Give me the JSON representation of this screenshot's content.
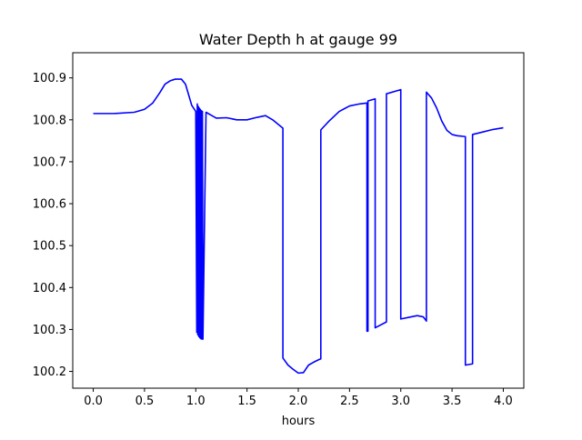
{
  "chart_data": {
    "type": "line",
    "title": "Water Depth h at gauge 99",
    "xlabel": "hours",
    "ylabel": "",
    "xlim": [
      -0.2,
      4.2
    ],
    "ylim": [
      100.16,
      100.96
    ],
    "xticks": [
      0.0,
      0.5,
      1.0,
      1.5,
      2.0,
      2.5,
      3.0,
      3.5,
      4.0
    ],
    "xtick_labels": [
      "0.0",
      "0.5",
      "1.0",
      "1.5",
      "2.0",
      "2.5",
      "3.0",
      "3.5",
      "4.0"
    ],
    "yticks": [
      100.2,
      100.3,
      100.4,
      100.5,
      100.6,
      100.7,
      100.8,
      100.9
    ],
    "ytick_labels": [
      "100.2",
      "100.3",
      "100.4",
      "100.5",
      "100.6",
      "100.7",
      "100.8",
      "100.9"
    ],
    "grid": false,
    "legend": "none",
    "series": [
      {
        "color": "#0000ff",
        "x": [
          0.0,
          0.2,
          0.4,
          0.5,
          0.58,
          0.65,
          0.7,
          0.75,
          0.8,
          0.86,
          0.9,
          0.93,
          0.96,
          1.0,
          1.01,
          1.015,
          1.02,
          1.025,
          1.03,
          1.035,
          1.04,
          1.045,
          1.05,
          1.055,
          1.06,
          1.065,
          1.07,
          1.1,
          1.2,
          1.3,
          1.4,
          1.5,
          1.6,
          1.68,
          1.75,
          1.85,
          1.85,
          1.9,
          1.95,
          2.0,
          2.05,
          2.1,
          2.15,
          2.2,
          2.22,
          2.22,
          2.3,
          2.4,
          2.5,
          2.6,
          2.67,
          2.67,
          2.68,
          2.68,
          2.75,
          2.75,
          2.86,
          2.86,
          3.0,
          3.0,
          3.1,
          3.16,
          3.22,
          3.25,
          3.25,
          3.3,
          3.35,
          3.4,
          3.45,
          3.5,
          3.55,
          3.63,
          3.63,
          3.7,
          3.7,
          3.8,
          3.9,
          4.0
        ],
        "y": [
          100.815,
          100.815,
          100.818,
          100.825,
          100.84,
          100.865,
          100.885,
          100.893,
          100.897,
          100.897,
          100.885,
          100.86,
          100.835,
          100.82,
          100.293,
          100.838,
          100.287,
          100.832,
          100.283,
          100.828,
          100.28,
          100.825,
          100.278,
          100.822,
          100.277,
          100.82,
          100.277,
          100.818,
          100.804,
          100.805,
          100.8,
          100.8,
          100.806,
          100.81,
          100.8,
          100.78,
          100.232,
          100.215,
          100.205,
          100.196,
          100.197,
          100.215,
          100.222,
          100.228,
          100.23,
          100.776,
          100.797,
          100.82,
          100.833,
          100.838,
          100.84,
          100.296,
          100.296,
          100.845,
          100.85,
          100.304,
          100.318,
          100.862,
          100.872,
          100.325,
          100.33,
          100.333,
          100.33,
          100.32,
          100.866,
          100.852,
          100.828,
          100.797,
          100.775,
          100.765,
          100.762,
          100.76,
          100.215,
          100.218,
          100.765,
          100.771,
          100.777,
          100.781
        ]
      }
    ]
  }
}
